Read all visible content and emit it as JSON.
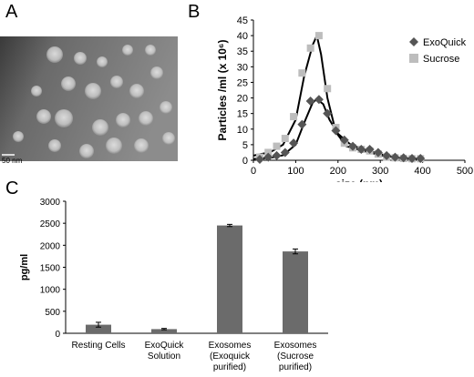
{
  "panel_labels": {
    "a": "A",
    "b": "B",
    "c": "C"
  },
  "micrograph": {
    "scale_label": "50 nm"
  },
  "colors": {
    "exoquick": "#555555",
    "sucrose": "#bdbdbd",
    "bar": "#6b6b6b",
    "curve": "#000000"
  },
  "chart_data": [
    {
      "type": "line",
      "panel": "B",
      "xlabel": "size (nm)",
      "ylabel": "Particles /ml (x 10⁶)",
      "xlim": [
        0,
        500
      ],
      "ylim": [
        0,
        45
      ],
      "xticks": [
        0,
        100,
        200,
        300,
        400,
        500
      ],
      "yticks": [
        0,
        5,
        10,
        15,
        20,
        25,
        30,
        35,
        40,
        45
      ],
      "legend_position": "right",
      "series": [
        {
          "name": "ExoQuick",
          "marker": "diamond",
          "x": [
            15,
            35,
            55,
            75,
            95,
            115,
            135,
            155,
            175,
            195,
            215,
            235,
            255,
            275,
            295,
            315,
            335,
            355,
            375,
            395
          ],
          "y": [
            0.3,
            1.0,
            1.5,
            2.5,
            5.5,
            11.5,
            19.0,
            19.5,
            15.0,
            9.5,
            6.5,
            4.5,
            3.5,
            3.5,
            2.5,
            1.5,
            1.0,
            0.8,
            0.6,
            0.6
          ],
          "fit_x": [
            0,
            40,
            70,
            100,
            120,
            140,
            150,
            165,
            180,
            200,
            230,
            260,
            300,
            340,
            390
          ],
          "fit_y": [
            0.4,
            0.8,
            1.6,
            5.0,
            12.0,
            18.5,
            19.6,
            18.0,
            13.0,
            8.5,
            5.0,
            3.5,
            2.0,
            0.8,
            0.5
          ]
        },
        {
          "name": "Sucrose",
          "marker": "square",
          "x": [
            15,
            35,
            55,
            75,
            95,
            115,
            135,
            155,
            175,
            195,
            215,
            235,
            255,
            275,
            295,
            315,
            335,
            355,
            375,
            395
          ],
          "y": [
            1.0,
            2.5,
            4.5,
            7.0,
            14.0,
            28.0,
            36.0,
            40.0,
            23.0,
            10.5,
            5.5,
            4.0,
            3.5,
            3.0,
            2.0,
            1.0,
            0.8,
            0.6,
            0.5,
            0.5
          ],
          "fit_x": [
            0,
            40,
            70,
            100,
            120,
            140,
            150,
            160,
            175,
            195,
            220,
            260,
            300,
            350,
            390
          ],
          "fit_y": [
            1.5,
            2.6,
            5.0,
            13.0,
            27.0,
            37.0,
            40.0,
            34.0,
            20.0,
            9.0,
            4.5,
            3.0,
            1.6,
            0.6,
            0.4
          ]
        }
      ]
    },
    {
      "type": "bar",
      "panel": "C",
      "ylabel": "pg/ml",
      "ylim": [
        0,
        3000
      ],
      "yticks": [
        0,
        500,
        1000,
        1500,
        2000,
        2500,
        3000
      ],
      "categories": [
        [
          "Resting Cells"
        ],
        [
          "ExoQuick",
          "Solution"
        ],
        [
          "Exosomes",
          "(Exoquick",
          "purified)"
        ],
        [
          "Exosomes",
          "(Sucrose",
          "purified)"
        ]
      ],
      "values": [
        195,
        95,
        2450,
        1860
      ],
      "errors": [
        55,
        15,
        25,
        55
      ]
    }
  ]
}
